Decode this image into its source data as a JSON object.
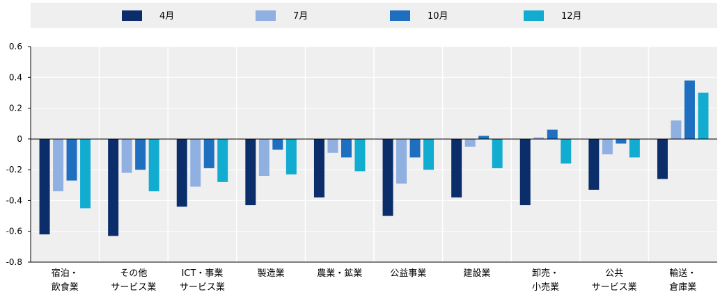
{
  "chart_data": {
    "type": "bar",
    "categories": [
      [
        "宿泊・",
        "飲食業"
      ],
      [
        "その他",
        "サービス業"
      ],
      [
        "ICT・事業",
        "サービス業"
      ],
      [
        "製造業"
      ],
      [
        "農業・鉱業"
      ],
      [
        "公益事業"
      ],
      [
        "建設業"
      ],
      [
        "卸売・",
        "小売業"
      ],
      [
        "公共",
        "サービス業"
      ],
      [
        "輸送・",
        "倉庫業"
      ]
    ],
    "series": [
      {
        "name": "4月",
        "color": "#0b2e6b",
        "values": [
          -0.62,
          -0.63,
          -0.44,
          -0.43,
          -0.38,
          -0.5,
          -0.38,
          -0.43,
          -0.33,
          -0.26
        ]
      },
      {
        "name": "7月",
        "color": "#8fb0e0",
        "values": [
          -0.34,
          -0.22,
          -0.31,
          -0.24,
          -0.09,
          -0.29,
          -0.05,
          0.01,
          -0.1,
          0.12
        ]
      },
      {
        "name": "10月",
        "color": "#1f6fc0",
        "values": [
          -0.27,
          -0.2,
          -0.19,
          -0.07,
          -0.12,
          -0.12,
          0.02,
          0.06,
          -0.03,
          0.38
        ]
      },
      {
        "name": "12月",
        "color": "#12acd0",
        "values": [
          -0.45,
          -0.34,
          -0.28,
          -0.23,
          -0.21,
          -0.2,
          -0.19,
          -0.16,
          -0.12,
          0.3
        ]
      }
    ],
    "yticks": [
      "0.6",
      "0.4",
      "0.2",
      "0",
      "-0.2",
      "-0.4",
      "-0.6",
      "-0.8"
    ],
    "ylim": [
      -0.8,
      0.6
    ],
    "legend_position": "top",
    "grid": true,
    "plot_background": "#efefef",
    "grid_color": "#ffffff"
  }
}
